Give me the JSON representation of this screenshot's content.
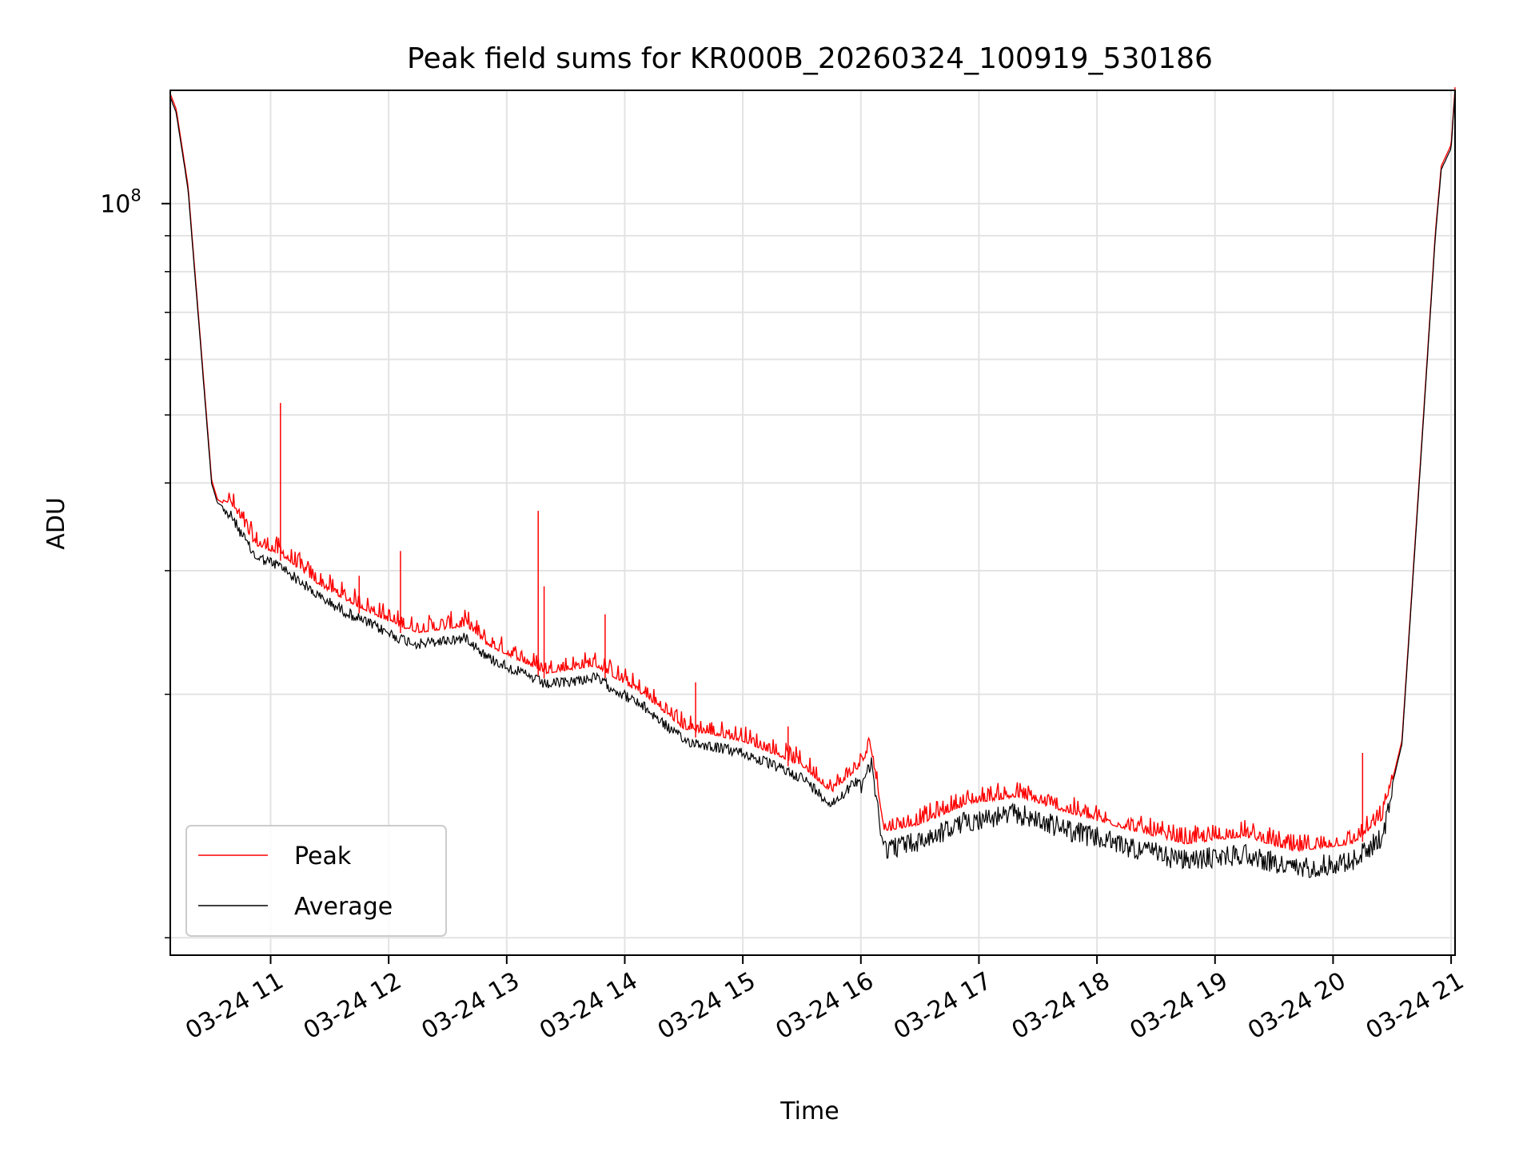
{
  "chart_data": {
    "type": "line",
    "title": "Peak field sums for KR000B_20260324_100919_530186",
    "xlabel": "Time",
    "ylabel": "ADU",
    "y_scale": "log",
    "ylim": [
      8500000,
      145000000
    ],
    "xlim": [
      "2026-03-24 10:09",
      "2026-03-24 21:02"
    ],
    "grid": true,
    "legend": {
      "placement": "lower-left"
    },
    "x_ticks": [
      "03-24 11",
      "03-24 12",
      "03-24 13",
      "03-24 14",
      "03-24 15",
      "03-24 16",
      "03-24 17",
      "03-24 18",
      "03-24 19",
      "03-24 20",
      "03-24 21"
    ],
    "y_ticks": [
      {
        "label_base": "10",
        "label_exp": "8",
        "value": 100000000
      }
    ],
    "series": [
      {
        "name": "Peak",
        "color": "#ff0000"
      },
      {
        "name": "Average",
        "color": "#000000"
      }
    ],
    "trend": {
      "x": [
        "2026-03-24 10:09",
        "2026-03-24 10:12",
        "2026-03-24 10:18",
        "2026-03-24 10:24",
        "2026-03-24 10:30",
        "2026-03-24 10:33",
        "2026-03-24 10:40",
        "2026-03-24 10:52",
        "2026-03-24 11:05",
        "2026-03-24 11:25",
        "2026-03-24 11:40",
        "2026-03-24 12:05",
        "2026-03-24 12:15",
        "2026-03-24 12:40",
        "2026-03-24 12:50",
        "2026-03-24 13:05",
        "2026-03-24 13:20",
        "2026-03-24 13:45",
        "2026-03-24 14:10",
        "2026-03-24 14:30",
        "2026-03-24 15:00",
        "2026-03-24 15:30",
        "2026-03-24 15:45",
        "2026-03-24 16:00",
        "2026-03-24 16:05",
        "2026-03-24 16:12",
        "2026-03-24 16:30",
        "2026-03-24 16:55",
        "2026-03-24 17:20",
        "2026-03-24 17:45",
        "2026-03-24 18:15",
        "2026-03-24 18:45",
        "2026-03-24 19:15",
        "2026-03-24 19:40",
        "2026-03-24 20:10",
        "2026-03-24 20:25",
        "2026-03-24 20:35",
        "2026-03-24 20:45",
        "2026-03-24 20:52",
        "2026-03-24 20:55",
        "2026-03-24 21:00",
        "2026-03-24 21:02"
      ],
      "average": [
        142000000,
        135000000,
        105000000,
        65000000,
        40000000,
        37500000,
        36500000,
        32000000,
        31000000,
        28000000,
        26500000,
        24500000,
        24000000,
        24500000,
        23000000,
        22000000,
        21000000,
        21500000,
        19500000,
        17500000,
        16800000,
        15500000,
        14200000,
        15500000,
        16500000,
        12500000,
        12800000,
        13700000,
        14000000,
        13300000,
        12600000,
        12000000,
        12300000,
        11700000,
        12000000,
        13000000,
        17000000,
        45000000,
        90000000,
        112000000,
        120000000,
        145000000
      ],
      "peak_ratio": 1.05
    },
    "peak_spikes": [
      {
        "x": "2026-03-24 11:05",
        "y": 52000000
      },
      {
        "x": "2026-03-24 11:45",
        "y": 29500000
      },
      {
        "x": "2026-03-24 12:06",
        "y": 32000000
      },
      {
        "x": "2026-03-24 13:16",
        "y": 36500000
      },
      {
        "x": "2026-03-24 13:19",
        "y": 28500000
      },
      {
        "x": "2026-03-24 13:50",
        "y": 26000000
      },
      {
        "x": "2026-03-24 14:36",
        "y": 20800000
      },
      {
        "x": "2026-03-24 15:23",
        "y": 18000000
      },
      {
        "x": "2026-03-24 20:15",
        "y": 16500000
      }
    ]
  }
}
